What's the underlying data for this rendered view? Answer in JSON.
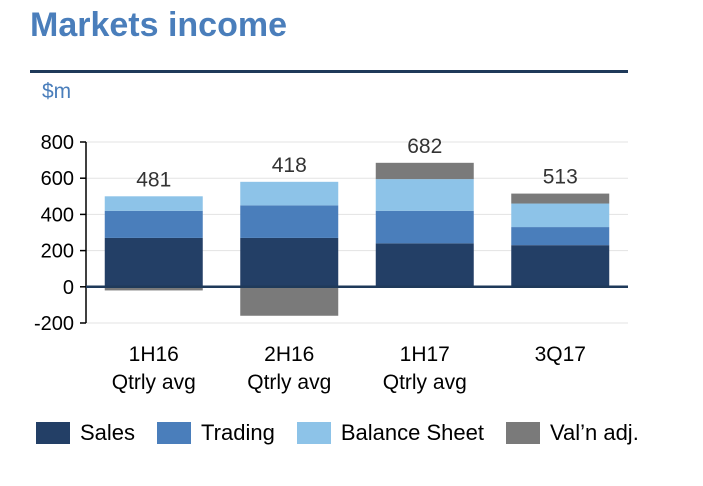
{
  "title": "Markets income",
  "unit": "$m",
  "chart_data": {
    "type": "bar",
    "stacked": true,
    "categories": [
      [
        "1H16",
        "Qtrly avg"
      ],
      [
        "2H16",
        "Qtrly avg"
      ],
      [
        "1H17",
        "Qtrly avg"
      ],
      [
        "3Q17"
      ]
    ],
    "totals": [
      "481",
      "418",
      "682",
      "513"
    ],
    "series": [
      {
        "name": "Sales",
        "color": "#233f66",
        "values": [
          270,
          270,
          240,
          230
        ]
      },
      {
        "name": "Trading",
        "color": "#4a7ebb",
        "values": [
          150,
          180,
          180,
          100
        ]
      },
      {
        "name": "Balance Sheet",
        "color": "#8dc3e8",
        "values": [
          80,
          130,
          175,
          130
        ]
      },
      {
        "name": "Val’n adj.",
        "color": "#7a7a7a",
        "values": [
          -20,
          -160,
          90,
          55
        ]
      }
    ],
    "ylim": [
      -200,
      800
    ],
    "yticks": [
      -200,
      0,
      200,
      400,
      600,
      800
    ],
    "grid": true,
    "legend": "bottom"
  }
}
